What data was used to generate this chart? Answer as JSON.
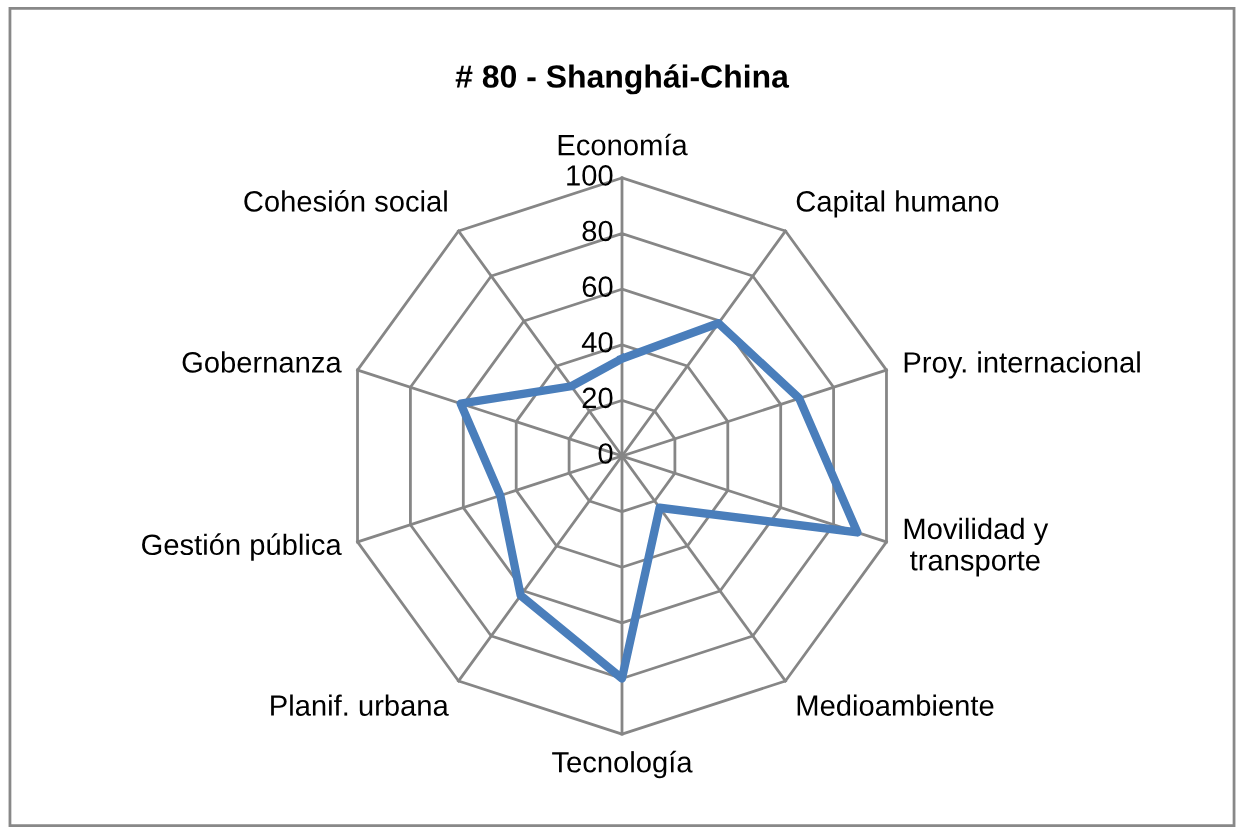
{
  "chart_data": {
    "type": "radar",
    "title": "# 80 - Shanghái-China",
    "categories": [
      "Economía",
      "Capital humano",
      "Proy. internacional",
      "Movilidad y\ntransporte",
      "Medioambiente",
      "Tecnología",
      "Planif. urbana",
      "Gestión pública",
      "Gobernanza",
      "Cohesión social"
    ],
    "series": [
      {
        "color": "#4a7ebb",
        "values": [
          35,
          59,
          67,
          89,
          23,
          80,
          62,
          46,
          61,
          31
        ]
      }
    ],
    "ylim": [
      0,
      100
    ],
    "yticks": [
      0,
      20,
      40,
      60,
      80,
      100
    ],
    "grid": true
  }
}
